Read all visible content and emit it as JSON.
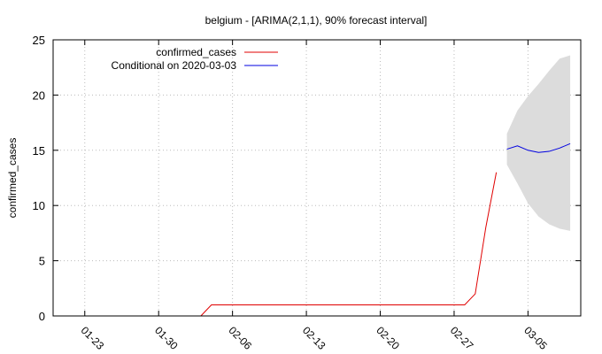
{
  "chart_data": {
    "type": "line",
    "title": "belgium -  [ARIMA(2,1,1), 90% forecast interval]",
    "xlabel": "",
    "ylabel": "confirmed_cases",
    "ylim": [
      0,
      25
    ],
    "yticks": [
      "0",
      "5",
      "10",
      "15",
      "20",
      "25"
    ],
    "xlim": [
      "2020-01-20",
      "2020-03-10"
    ],
    "xticks": [
      {
        "label": "01-23",
        "date": "2020-01-23"
      },
      {
        "label": "01-30",
        "date": "2020-01-30"
      },
      {
        "label": "02-06",
        "date": "2020-02-06"
      },
      {
        "label": "02-13",
        "date": "2020-02-13"
      },
      {
        "label": "02-20",
        "date": "2020-02-20"
      },
      {
        "label": "02-27",
        "date": "2020-02-27"
      },
      {
        "label": "03-05",
        "date": "2020-03-05"
      }
    ],
    "grid": true,
    "legend_position": "top-left",
    "colors": {
      "observed": "#e00000",
      "forecast": "#0000e0",
      "band": "#dcdcdc",
      "grid": "#bbbbbb"
    },
    "series": [
      {
        "name": "confirmed_cases",
        "x": [
          "2020-02-03",
          "2020-02-04",
          "2020-02-05",
          "2020-02-06",
          "2020-02-07",
          "2020-02-08",
          "2020-02-09",
          "2020-02-10",
          "2020-02-11",
          "2020-02-12",
          "2020-02-13",
          "2020-02-14",
          "2020-02-15",
          "2020-02-16",
          "2020-02-17",
          "2020-02-18",
          "2020-02-19",
          "2020-02-20",
          "2020-02-21",
          "2020-02-22",
          "2020-02-23",
          "2020-02-24",
          "2020-02-25",
          "2020-02-26",
          "2020-02-27",
          "2020-02-28",
          "2020-02-29",
          "2020-03-01",
          "2020-03-02"
        ],
        "y": [
          0,
          1,
          1,
          1,
          1,
          1,
          1,
          1,
          1,
          1,
          1,
          1,
          1,
          1,
          1,
          1,
          1,
          1,
          1,
          1,
          1,
          1,
          1,
          1,
          1,
          1,
          2,
          8,
          13
        ]
      },
      {
        "name": "Conditional on 2020-03-03",
        "x": [
          "2020-03-03",
          "2020-03-04",
          "2020-03-05",
          "2020-03-06",
          "2020-03-07",
          "2020-03-08",
          "2020-03-09"
        ],
        "y": [
          15.1,
          15.4,
          15.0,
          14.8,
          14.9,
          15.2,
          15.6
        ]
      }
    ],
    "forecast_interval": {
      "x": [
        "2020-03-03",
        "2020-03-04",
        "2020-03-05",
        "2020-03-06",
        "2020-03-07",
        "2020-03-08",
        "2020-03-09"
      ],
      "lower": [
        13.7,
        12.0,
        10.2,
        9.0,
        8.3,
        7.9,
        7.7
      ],
      "upper": [
        16.5,
        18.6,
        19.9,
        21.0,
        22.2,
        23.3,
        23.6
      ]
    }
  }
}
